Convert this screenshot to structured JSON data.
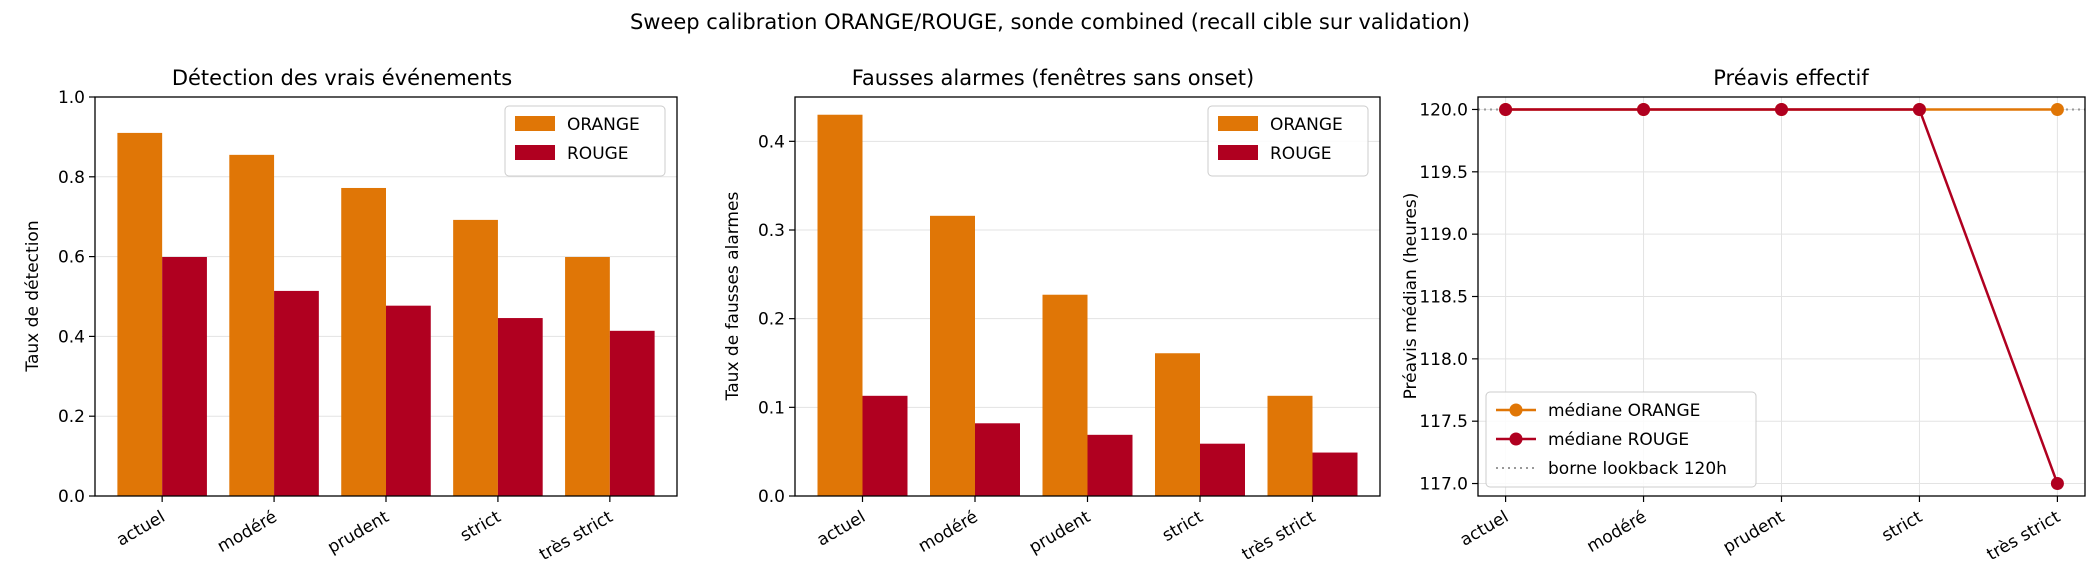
{
  "figure": {
    "suptitle": "Sweep calibration ORANGE/ROUGE, sonde combined (recall cible sur validation)"
  },
  "colors": {
    "orange": "#E07606",
    "rouge": "#B00020",
    "grid": "#E3E3E3",
    "reference": "#999999"
  },
  "chart_data": [
    {
      "type": "bar",
      "title": "Détection des vrais événements",
      "xlabel": "",
      "ylabel": "Taux de détection",
      "categories": [
        "actuel",
        "modéré",
        "prudent",
        "strict",
        "très strict"
      ],
      "series": [
        {
          "name": "ORANGE",
          "values": [
            0.91,
            0.855,
            0.772,
            0.692,
            0.599
          ]
        },
        {
          "name": "ROUGE",
          "values": [
            0.599,
            0.514,
            0.477,
            0.446,
            0.414
          ]
        }
      ],
      "ylim": [
        0,
        1.0
      ],
      "yticks": [
        0.0,
        0.2,
        0.4,
        0.6,
        0.8,
        1.0
      ],
      "ytick_labels": [
        "0.0",
        "0.2",
        "0.4",
        "0.6",
        "0.8",
        "1.0"
      ],
      "grid": "horizontal",
      "legend": "top-right"
    },
    {
      "type": "bar",
      "title": "Fausses alarmes (fenêtres sans onset)",
      "xlabel": "",
      "ylabel": "Taux de fausses alarmes",
      "categories": [
        "actuel",
        "modéré",
        "prudent",
        "strict",
        "très strict"
      ],
      "series": [
        {
          "name": "ORANGE",
          "values": [
            0.43,
            0.316,
            0.227,
            0.161,
            0.113
          ]
        },
        {
          "name": "ROUGE",
          "values": [
            0.113,
            0.082,
            0.069,
            0.059,
            0.049
          ]
        }
      ],
      "ylim": [
        0,
        0.45
      ],
      "yticks": [
        0.0,
        0.1,
        0.2,
        0.3,
        0.4
      ],
      "ytick_labels": [
        "0.0",
        "0.1",
        "0.2",
        "0.3",
        "0.4"
      ],
      "grid": "horizontal",
      "legend": "top-right"
    },
    {
      "type": "line",
      "title": "Préavis effectif",
      "xlabel": "",
      "ylabel": "Préavis médian (heures)",
      "categories": [
        "actuel",
        "modéré",
        "prudent",
        "strict",
        "très strict"
      ],
      "series": [
        {
          "name": "médiane ORANGE",
          "values": [
            120,
            120,
            120,
            120,
            120
          ]
        },
        {
          "name": "médiane ROUGE",
          "values": [
            120,
            120,
            120,
            120,
            117
          ]
        }
      ],
      "reference_line": {
        "name": "borne lookback 120h",
        "value": 120
      },
      "ylim": [
        116.9,
        120.1
      ],
      "yticks": [
        117.0,
        117.5,
        118.0,
        118.5,
        119.0,
        119.5,
        120.0
      ],
      "ytick_labels": [
        "117.0",
        "117.5",
        "118.0",
        "118.5",
        "119.0",
        "119.5",
        "120.0"
      ],
      "grid": "both",
      "legend": "lower-left"
    }
  ]
}
